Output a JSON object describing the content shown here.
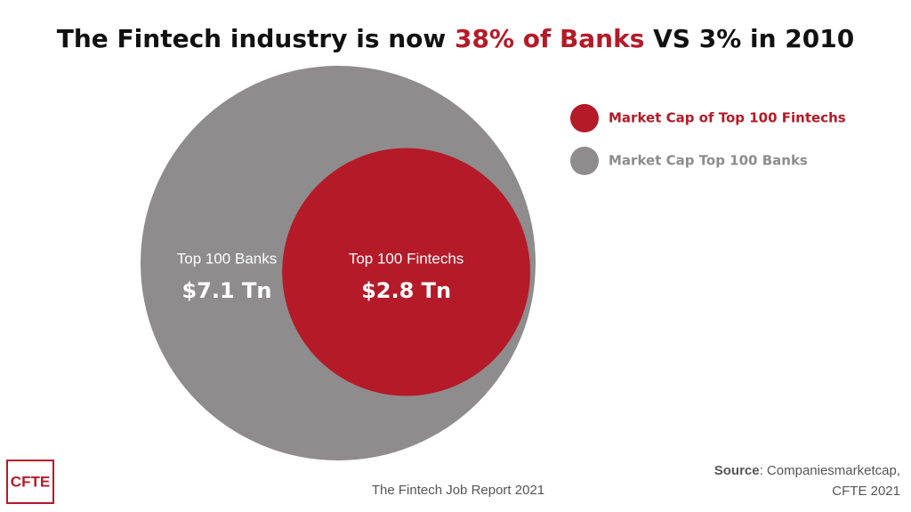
{
  "chart_data": {
    "type": "nested-circles",
    "title_parts": [
      "The Fintech industry is now ",
      "38% of Banks",
      " VS 3% in 2010"
    ],
    "title_highlight_color": "#b51a28",
    "series": [
      {
        "name": "Market Cap of Top 100 Fintechs",
        "label": "Top 100 Fintechs",
        "color": "#b51a28",
        "values": [
          2.8
        ],
        "value_labels": [
          "$2.8 Tn"
        ]
      },
      {
        "name": "Market Cap Top 100 Banks",
        "label": "Top 100 Banks",
        "color": "#8e8c8d",
        "values": [
          7.1
        ],
        "value_labels": [
          "$7.1 Tn"
        ]
      }
    ]
  },
  "footer": {
    "report": "The Fintech Job Report 2021",
    "source_label": "Source",
    "source_lines": [
      ": Companiesmarketcap,",
      "CFTE 2021"
    ],
    "logo": "CFTE"
  }
}
